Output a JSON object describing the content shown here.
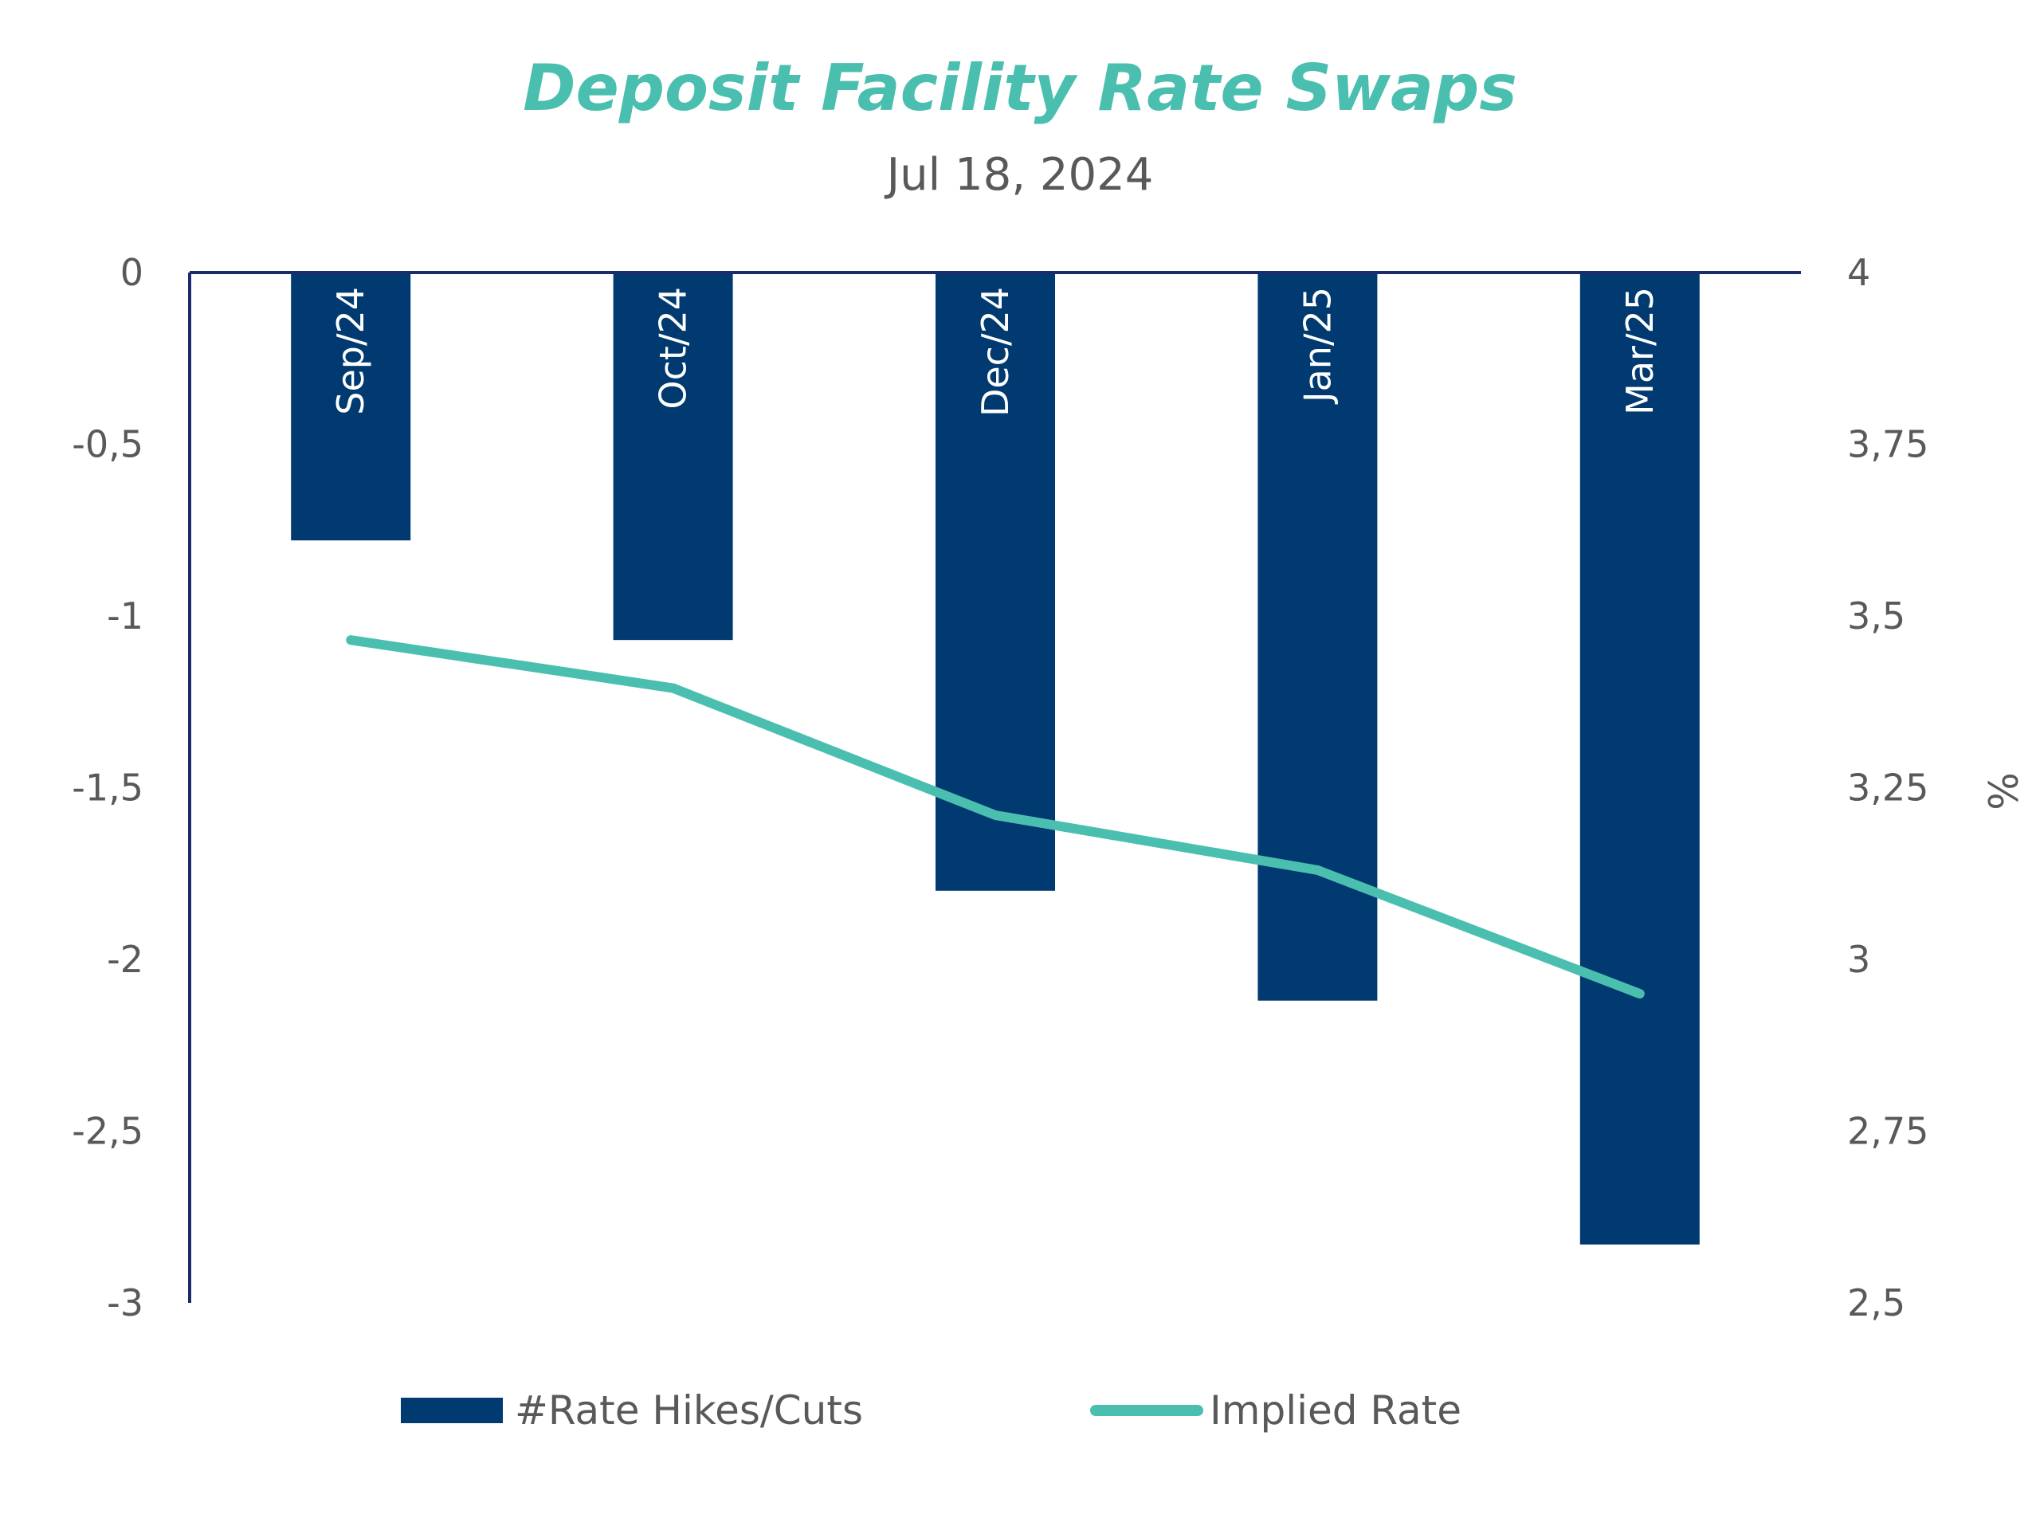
{
  "chart_data": {
    "type": "bar",
    "title": "Deposit Facility Rate Swaps",
    "subtitle": "Jul 18, 2024",
    "categories": [
      "Sep/24",
      "Oct/24",
      "Dec/24",
      "Jan/25",
      "Mar/25"
    ],
    "series": [
      {
        "name": "#Rate Hikes/Cuts",
        "type": "bar",
        "axis": "left",
        "values": [
          -0.78,
          -1.07,
          -1.8,
          -2.12,
          -2.83
        ]
      },
      {
        "name": "Implied Rate",
        "type": "line",
        "axis": "right",
        "values": [
          3.465,
          3.395,
          3.21,
          3.13,
          2.95
        ]
      }
    ],
    "y_left": {
      "label": "",
      "ylim": [
        -3,
        0
      ],
      "ticks": [
        0,
        -0.5,
        -1,
        -1.5,
        -2,
        -2.5,
        -3
      ],
      "tick_labels": [
        "0",
        "-0,5",
        "-1",
        "-1,5",
        "-2",
        "-2,5",
        "-3"
      ]
    },
    "y_right": {
      "label": "%",
      "ylim": [
        2.5,
        4
      ],
      "ticks": [
        4,
        3.75,
        3.5,
        3.25,
        3,
        2.75,
        2.5
      ],
      "tick_labels": [
        "4",
        "3,75",
        "3,5",
        "3,25",
        "3",
        "2,75",
        "2,5"
      ]
    },
    "legend": {
      "position": "bottom",
      "items": [
        "#Rate Hikes/Cuts",
        "Implied Rate"
      ]
    },
    "grid": false,
    "colors": {
      "title": "#4bbfaf",
      "subtitle": "#595959",
      "bars": "#003a70",
      "line": "#4bbfaf",
      "axis": "#1b2b6b",
      "ticks": "#595959",
      "bar_label": "#ffffff"
    }
  }
}
